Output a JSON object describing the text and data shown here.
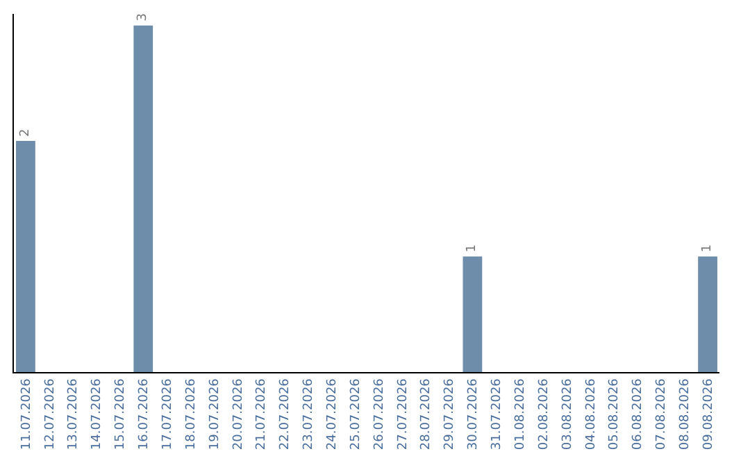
{
  "chart_data": {
    "type": "bar",
    "categories": [
      "11.07.2026",
      "12.07.2026",
      "13.07.2026",
      "14.07.2026",
      "15.07.2026",
      "16.07.2026",
      "17.07.2026",
      "18.07.2026",
      "19.07.2026",
      "20.07.2026",
      "21.07.2026",
      "22.07.2026",
      "23.07.2026",
      "24.07.2026",
      "25.07.2026",
      "26.07.2026",
      "27.07.2026",
      "28.07.2026",
      "29.07.2026",
      "30.07.2026",
      "31.07.2026",
      "01.08.2026",
      "02.08.2026",
      "03.08.2026",
      "04.08.2026",
      "05.08.2026",
      "06.08.2026",
      "07.08.2026",
      "08.08.2026",
      "09.08.2026"
    ],
    "values": [
      2,
      0,
      0,
      0,
      0,
      3,
      0,
      0,
      0,
      0,
      0,
      0,
      0,
      0,
      0,
      0,
      0,
      0,
      0,
      1,
      0,
      0,
      0,
      0,
      0,
      0,
      0,
      0,
      0,
      1
    ],
    "value_labels": [
      "2",
      null,
      null,
      null,
      null,
      "3",
      null,
      null,
      null,
      null,
      null,
      null,
      null,
      null,
      null,
      null,
      null,
      null,
      null,
      "1",
      null,
      null,
      null,
      null,
      null,
      null,
      null,
      null,
      null,
      "1"
    ],
    "color": "#6e8daa",
    "ylim": [
      0,
      3.1
    ],
    "tick_labels": "x"
  }
}
